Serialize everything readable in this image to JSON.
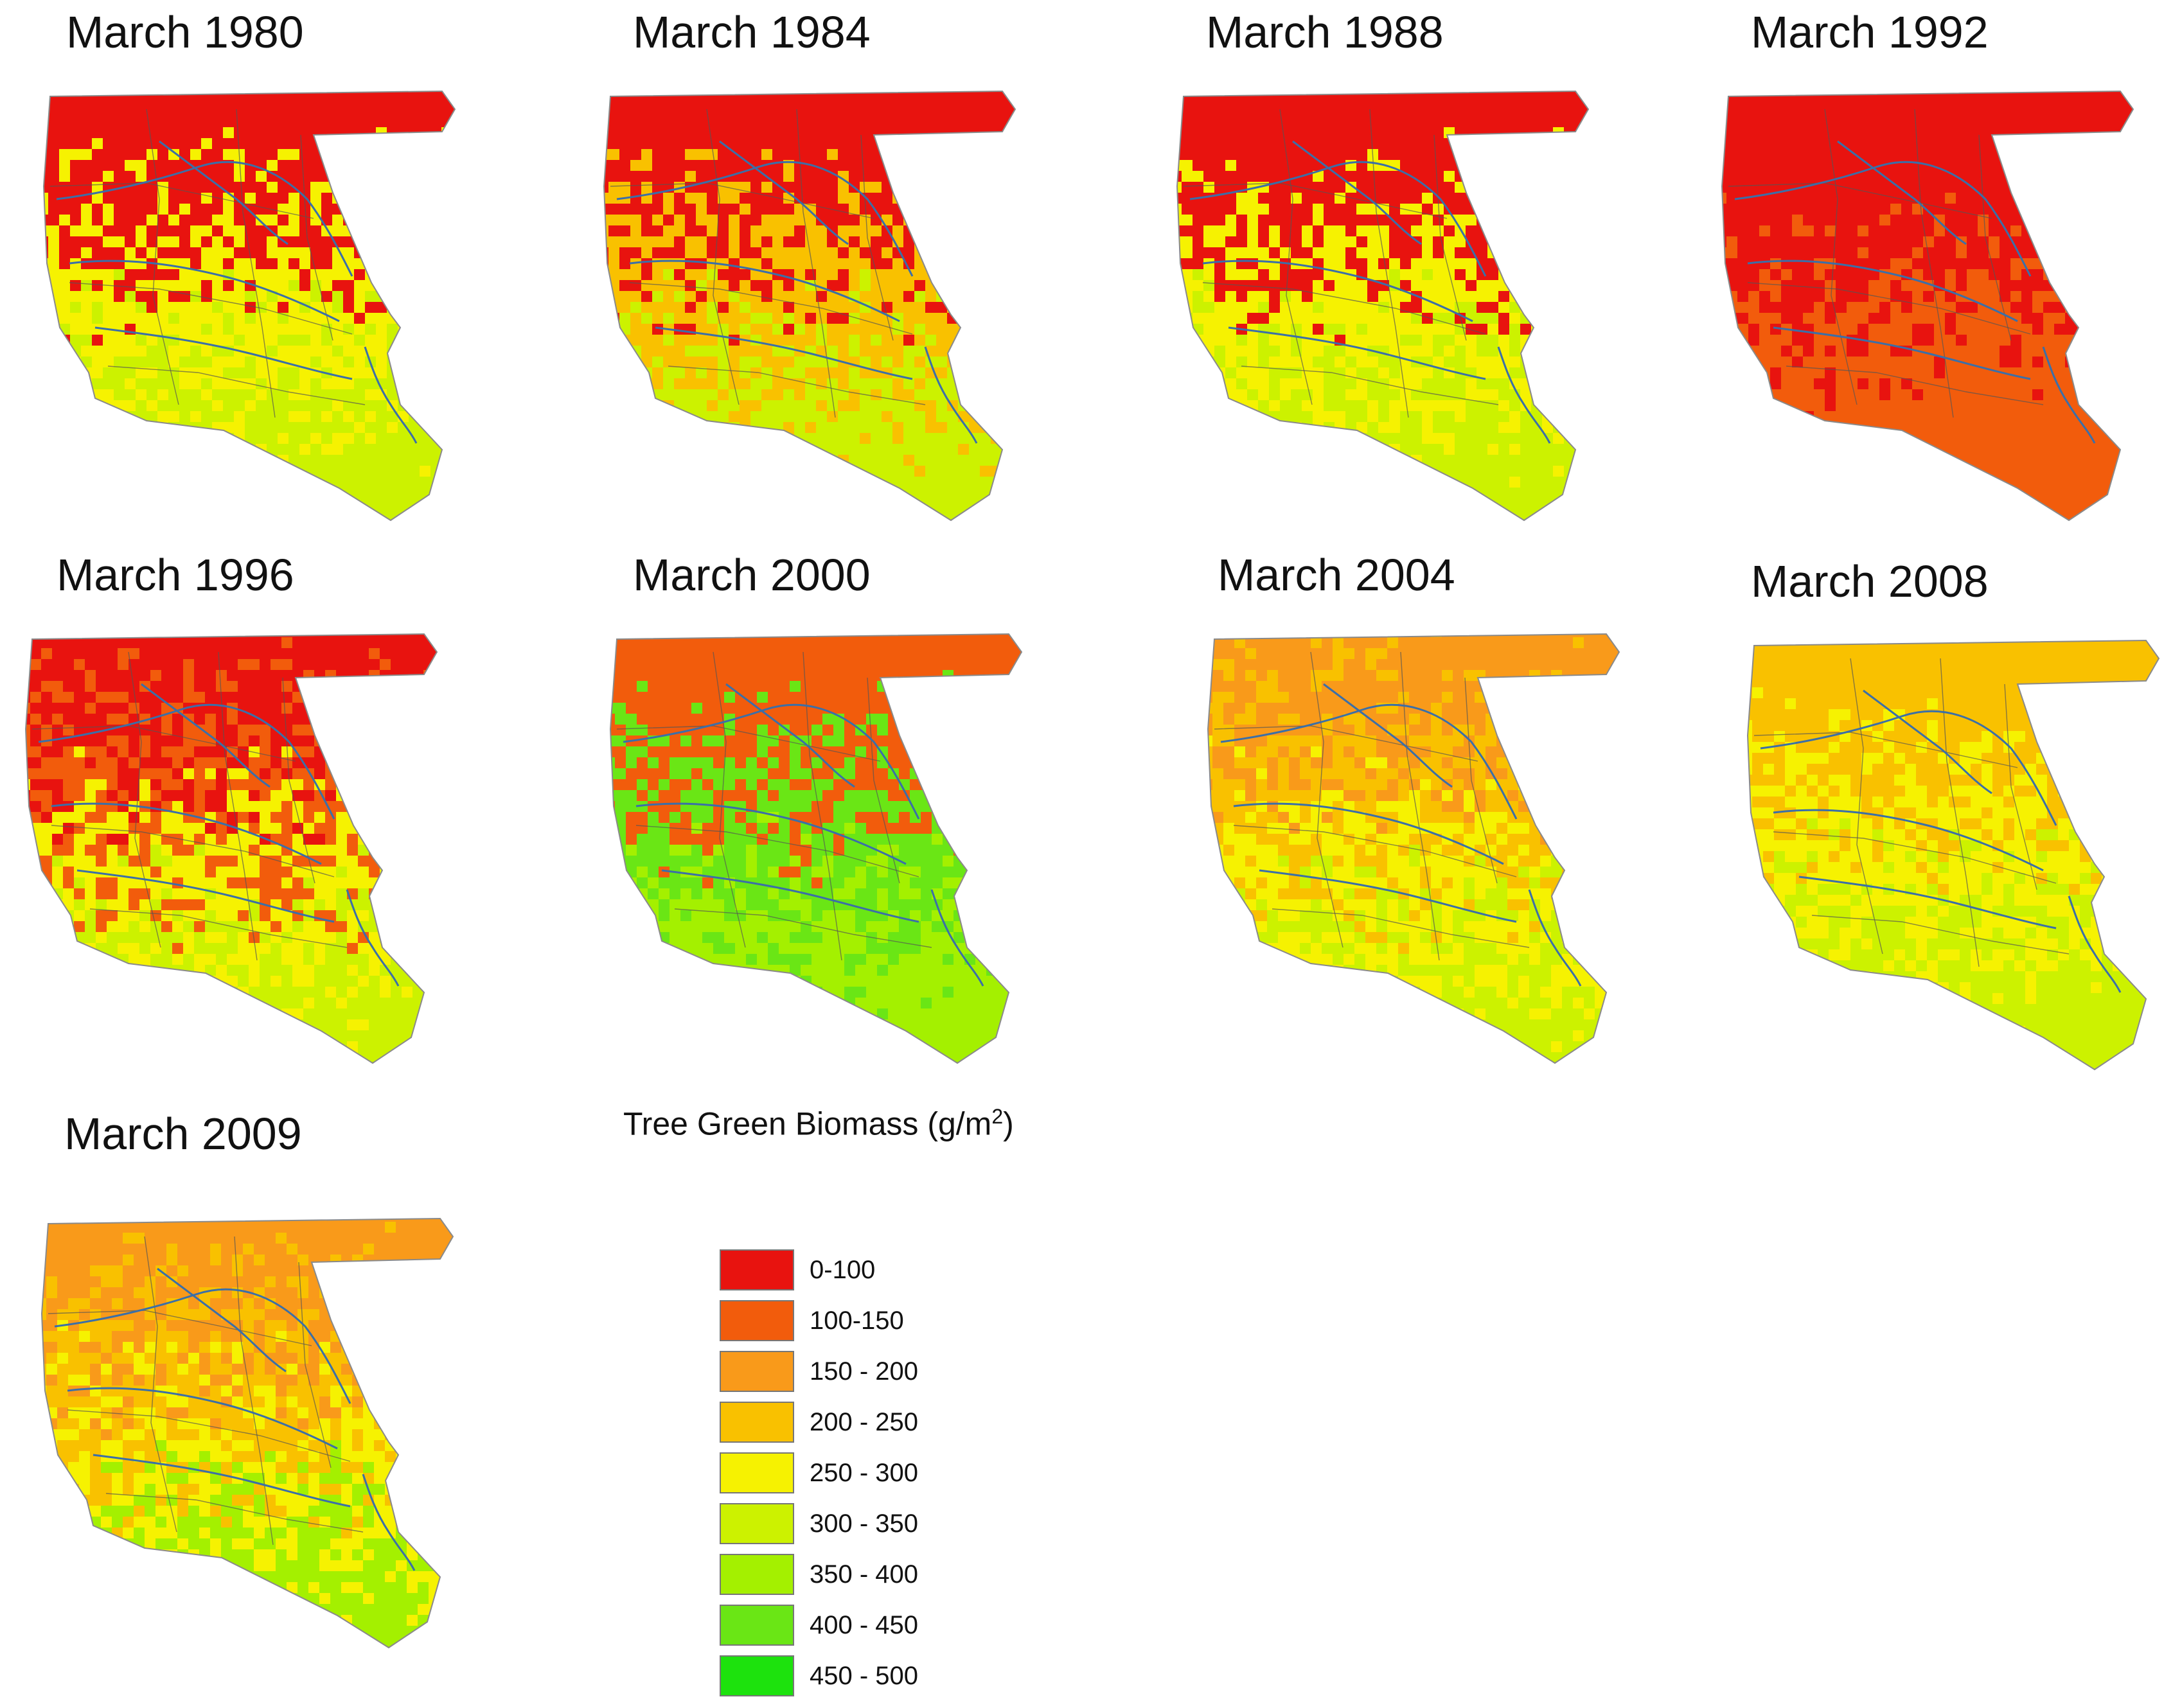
{
  "figure": {
    "legend_title_prefix": "Tree Green Biomass (g/m",
    "legend_title_sup": "2",
    "legend_title_suffix": ")",
    "legend_classes": [
      {
        "label": "0-100",
        "color": "#e8130f"
      },
      {
        "label": "100-150",
        "color": "#f25c0c"
      },
      {
        "label": "150 - 200",
        "color": "#f99a1a"
      },
      {
        "label": "200 - 250",
        "color": "#f9c100"
      },
      {
        "label": "250 - 300",
        "color": "#f6f201"
      },
      {
        "label": "300 - 350",
        "color": "#ccf200"
      },
      {
        "label": "350 - 400",
        "color": "#a4f000"
      },
      {
        "label": "400 - 450",
        "color": "#6ae615"
      },
      {
        "label": "450 - 500",
        "color": "#1de20d"
      }
    ],
    "maps": [
      {
        "title": "March 1980",
        "dominant_classes": [
          "0-100",
          "250 - 300",
          "300 - 350"
        ]
      },
      {
        "title": "March 1984",
        "dominant_classes": [
          "0-100",
          "200 - 250",
          "300 - 350"
        ]
      },
      {
        "title": "March 1988",
        "dominant_classes": [
          "0-100",
          "250 - 300",
          "300 - 350"
        ]
      },
      {
        "title": "March 1992",
        "dominant_classes": [
          "0-100",
          "100-150"
        ]
      },
      {
        "title": "March 1996",
        "dominant_classes": [
          "0-100",
          "100-150",
          "250 - 300",
          "300 - 350"
        ]
      },
      {
        "title": "March 2000",
        "dominant_classes": [
          "100-150",
          "400 - 450",
          "350 - 400"
        ]
      },
      {
        "title": "March 2004",
        "dominant_classes": [
          "150 - 200",
          "200 - 250",
          "250 - 300",
          "300 - 350"
        ]
      },
      {
        "title": "March 2008",
        "dominant_classes": [
          "200 - 250",
          "250 - 300",
          "300 - 350"
        ]
      },
      {
        "title": "March 2009",
        "dominant_classes": [
          "150 - 200",
          "200 - 250",
          "250 - 300",
          "350 - 400"
        ]
      }
    ],
    "river_color": "#3b6fa8",
    "boundary_color": "#555555"
  }
}
